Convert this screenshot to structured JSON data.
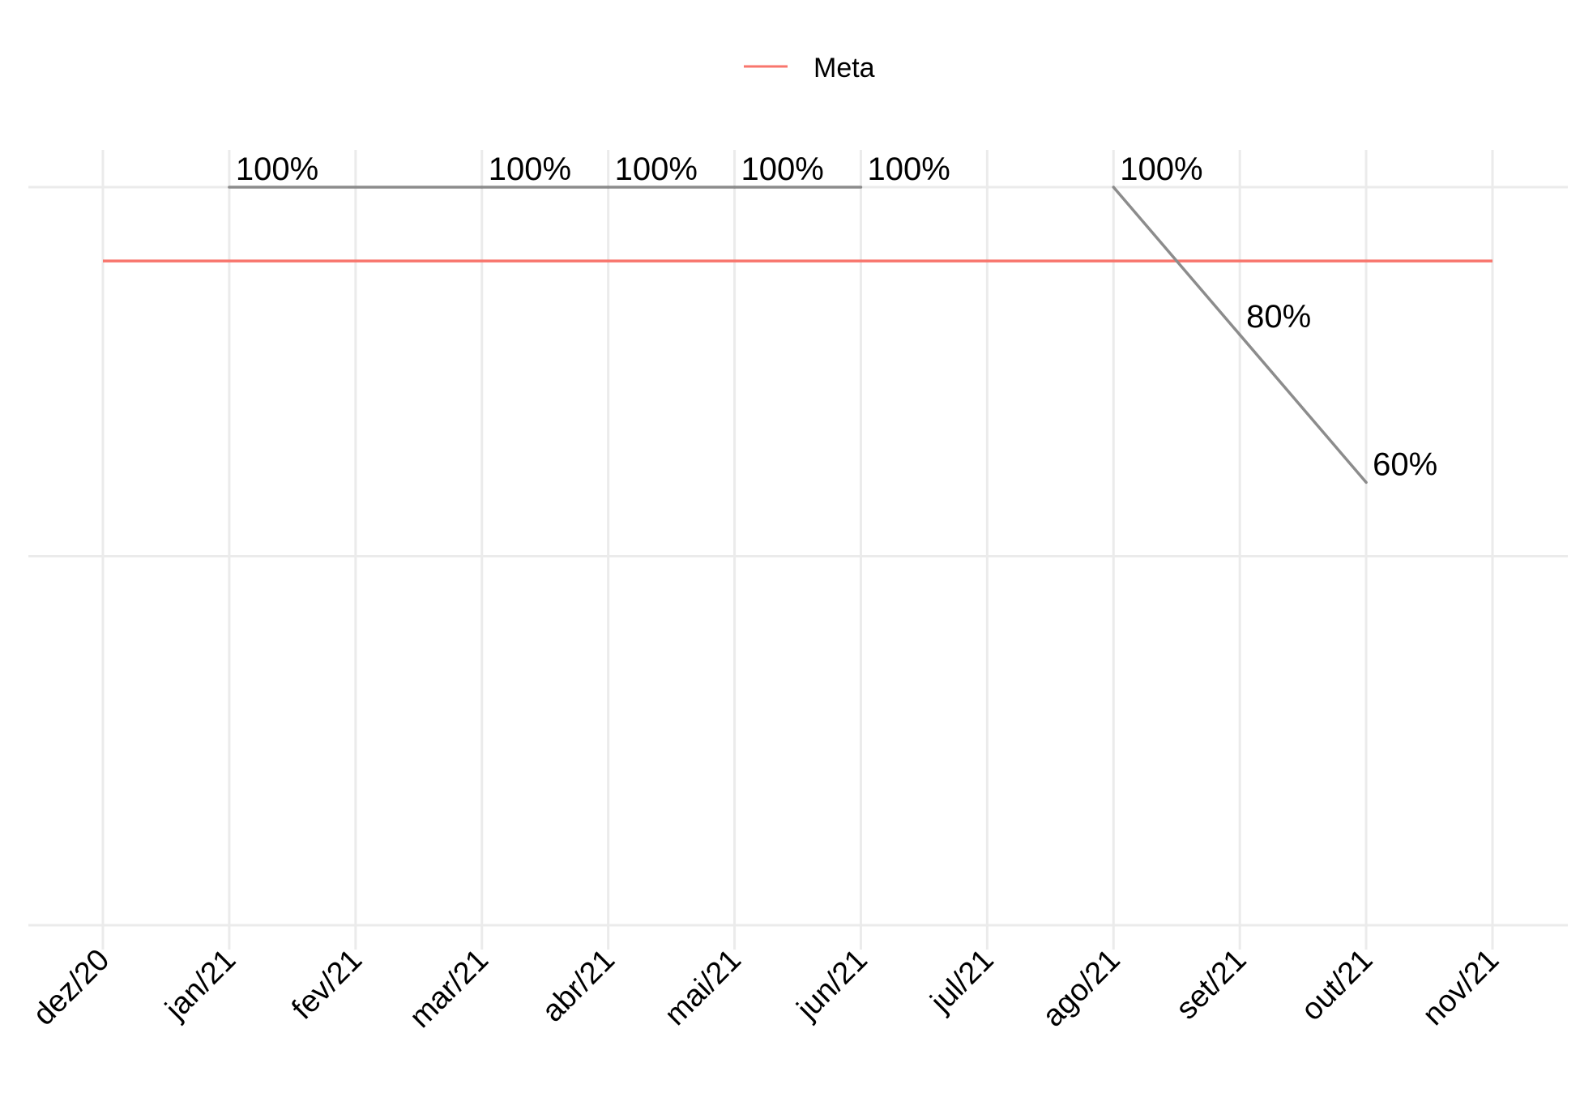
{
  "chart_data": {
    "type": "line",
    "categories": [
      "dez/20",
      "jan/21",
      "fev/21",
      "mar/21",
      "abr/21",
      "mai/21",
      "jun/21",
      "jul/21",
      "ago/21",
      "set/21",
      "out/21",
      "nov/21"
    ],
    "series": [
      {
        "name": "",
        "color": "#8c8c8c",
        "points": [
          {
            "x": "jan/21",
            "y": 100,
            "label": "100%",
            "connect": false
          },
          {
            "x": "mar/21",
            "y": 100,
            "label": "100%",
            "connect": true
          },
          {
            "x": "abr/21",
            "y": 100,
            "label": "100%",
            "connect": true
          },
          {
            "x": "mai/21",
            "y": 100,
            "label": "100%",
            "connect": true
          },
          {
            "x": "jun/21",
            "y": 100,
            "label": "100%",
            "connect": true
          },
          {
            "x": "ago/21",
            "y": 100,
            "label": "100%",
            "connect": false
          },
          {
            "x": "set/21",
            "y": 80,
            "label": "80%",
            "connect": true
          },
          {
            "x": "out/21",
            "y": 60,
            "label": "60%",
            "connect": true
          }
        ]
      }
    ],
    "reference_lines": [
      {
        "name": "Meta",
        "y": 90,
        "from": "dez/20",
        "to": "nov/21",
        "color": "#f8766d"
      }
    ],
    "legend": {
      "entries": [
        "Meta"
      ],
      "position": "top"
    },
    "ylim": [
      0,
      100
    ],
    "y_gridlines": [
      0,
      50,
      100
    ],
    "grid": true,
    "y_tick_labels_shown": false,
    "x_tick_rotation": "45"
  }
}
